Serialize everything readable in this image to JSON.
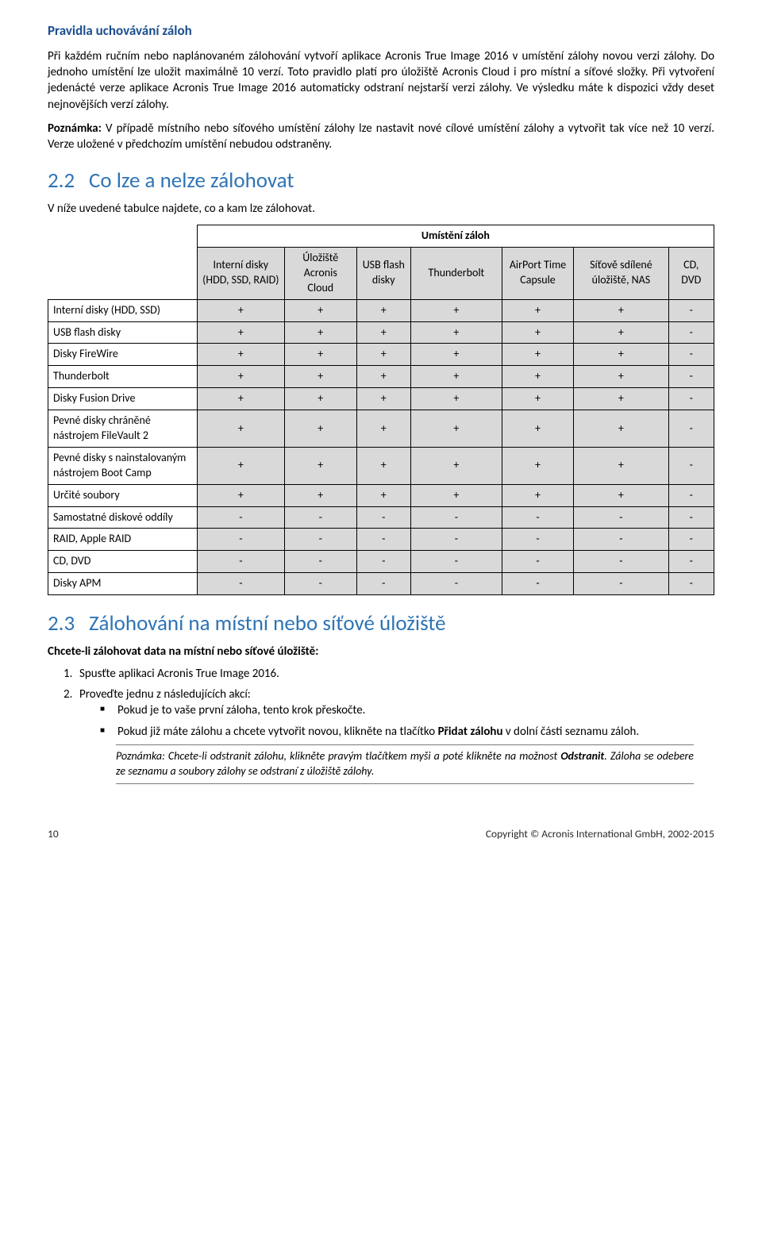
{
  "colors": {
    "heading_blue": "#2e74b5",
    "subhead_blue": "#1b4e8f",
    "table_header_bg": "#d9d9d9",
    "table_border": "#000000",
    "notebox_border": "#7a7a7a",
    "body_text": "#000000",
    "background": "#ffffff"
  },
  "rules": {
    "heading": "Pravidla uchovávání záloh",
    "p1": "Při každém ručním nebo naplánovaném zálohování vytvoří aplikace Acronis True Image 2016 v umístění zálohy novou verzi zálohy. Do jednoho umístění lze uložit maximálně 10 verzí. Toto pravidlo platí pro úložiště Acronis Cloud i pro místní a síťové složky. Při vytvoření jedenácté verze aplikace Acronis True Image 2016 automaticky odstraní nejstarší verzi zálohy. Ve výsledku máte k dispozici vždy deset nejnovějších verzí zálohy.",
    "p2_label": "Poznámka:",
    "p2_text": " V případě místního nebo síťového umístění zálohy lze nastavit nové cílové umístění zálohy a vytvořit tak více než 10 verzí. Verze uložené v předchozím umístění nebudou odstraněny."
  },
  "s22": {
    "num": "2.2",
    "title": "Co lze a nelze zálohovat",
    "lead": "V níže uvedené tabulce najdete, co a kam lze zálohovat.",
    "locations_header": "Umístění záloh",
    "columns": [
      "Interní disky (HDD, SSD, RAID)",
      "Úložiště Acronis Cloud",
      "USB flash disky",
      "Thunderbolt",
      "AirPort Time Capsule",
      "Síťově sdílené úložiště, NAS",
      "CD, DVD"
    ],
    "rows": [
      {
        "label": "Interní disky (HDD, SSD)",
        "cells": [
          "+",
          "+",
          "+",
          "+",
          "+",
          "+",
          "-"
        ]
      },
      {
        "label": "USB flash disky",
        "cells": [
          "+",
          "+",
          "+",
          "+",
          "+",
          "+",
          "-"
        ]
      },
      {
        "label": "Disky FireWire",
        "cells": [
          "+",
          "+",
          "+",
          "+",
          "+",
          "+",
          "-"
        ]
      },
      {
        "label": "Thunderbolt",
        "cells": [
          "+",
          "+",
          "+",
          "+",
          "+",
          "+",
          "-"
        ]
      },
      {
        "label": "Disky Fusion Drive",
        "cells": [
          "+",
          "+",
          "+",
          "+",
          "+",
          "+",
          "-"
        ]
      },
      {
        "label": "Pevné disky chráněné nástrojem FileVault 2",
        "cells": [
          "+",
          "+",
          "+",
          "+",
          "+",
          "+",
          "-"
        ]
      },
      {
        "label": "Pevné disky s nainstalovaným nástrojem Boot Camp",
        "cells": [
          "+",
          "+",
          "+",
          "+",
          "+",
          "+",
          "-"
        ]
      },
      {
        "label": "Určité soubory",
        "cells": [
          "+",
          "+",
          "+",
          "+",
          "+",
          "+",
          "-"
        ]
      },
      {
        "label": "Samostatné diskové oddíly",
        "cells": [
          "-",
          "-",
          "-",
          "-",
          "-",
          "-",
          "-"
        ]
      },
      {
        "label": "RAID, Apple RAID",
        "cells": [
          "-",
          "-",
          "-",
          "-",
          "-",
          "-",
          "-"
        ]
      },
      {
        "label": "CD, DVD",
        "cells": [
          "-",
          "-",
          "-",
          "-",
          "-",
          "-",
          "-"
        ]
      },
      {
        "label": "Disky APM",
        "cells": [
          "-",
          "-",
          "-",
          "-",
          "-",
          "-",
          "-"
        ]
      }
    ]
  },
  "s23": {
    "num": "2.3",
    "title": "Zálohování na místní nebo síťové úložiště",
    "lead_bold": "Chcete-li zálohovat data na místní nebo síťové úložiště:",
    "step1_num": "1.",
    "step1": "Spusťte aplikaci Acronis True Image 2016.",
    "step2_num": "2.",
    "step2": "Proveďte jednu z následujících akcí:",
    "bullet1": "Pokud je to vaše první záloha, tento krok přeskočte.",
    "bullet2_a": "Pokud již máte zálohu a chcete vytvořit novou, klikněte na tlačítko ",
    "bullet2_bold": "Přidat zálohu",
    "bullet2_b": " v dolní části seznamu záloh.",
    "note_a": "Poznámka: Chcete-li odstranit zálohu, klikněte pravým tlačítkem myši a poté klikněte na možnost ",
    "note_bold": "Odstranit",
    "note_b": ". Záloha se odebere ze seznamu a soubory zálohy se odstraní z úložiště zálohy."
  },
  "footer": {
    "page": "10",
    "copyright": "Copyright © Acronis International GmbH, 2002-2015"
  }
}
